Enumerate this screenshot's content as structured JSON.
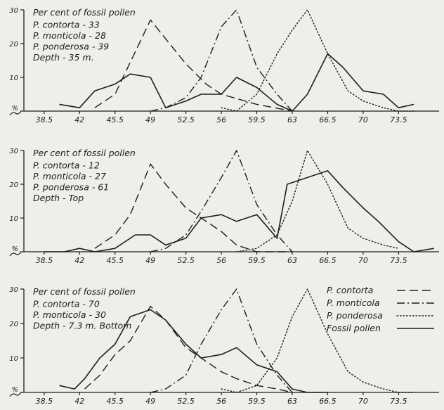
{
  "chart_data": [
    {
      "type": "line",
      "title": "",
      "xlabel": "",
      "ylabel": "",
      "x_tick_labels": [
        "38.5",
        "42",
        "45.5",
        "49",
        "52.5",
        "56",
        "59.5",
        "63",
        "66.5",
        "70",
        "73.5"
      ],
      "y_tick_labels": [
        "%",
        "10",
        "20",
        "30"
      ],
      "xlim": [
        36.5,
        77.5
      ],
      "ylim": [
        0,
        30
      ],
      "grid": false,
      "info_lines": [
        "Per cent of fossil pollen",
        "P. contorta - 33",
        "P. monticola - 28",
        "P. ponderosa - 39",
        "Depth - 35 m."
      ],
      "series": [
        {
          "name": "P. contorta",
          "style": "dashed",
          "x": [
            43.5,
            45.5,
            49,
            52.5,
            54.5,
            56,
            59.5,
            63
          ],
          "y": [
            1,
            5,
            27,
            14,
            8,
            5,
            2,
            0
          ]
        },
        {
          "name": "P. monticola",
          "style": "dashdot",
          "x": [
            49,
            50.5,
            52.5,
            54,
            56,
            57.5,
            59.5,
            61.5,
            63
          ],
          "y": [
            0,
            1,
            4,
            10,
            25,
            30,
            13,
            5,
            0
          ]
        },
        {
          "name": "P. ponderosa",
          "style": "dotted",
          "x": [
            56,
            57.5,
            59.5,
            61.5,
            63,
            64.5,
            66.5,
            68.5,
            70,
            72,
            73.5,
            75
          ],
          "y": [
            1,
            0,
            5,
            17,
            24,
            30,
            17,
            6,
            3,
            1,
            0,
            0
          ]
        },
        {
          "name": "Fossil pollen",
          "style": "solid",
          "x": [
            40,
            42,
            43.5,
            45.5,
            47,
            49,
            50.5,
            52.5,
            54,
            56,
            57.5,
            59.5,
            61.5,
            63,
            64.5,
            66.5,
            68,
            70,
            72,
            73.5,
            75
          ],
          "y": [
            2,
            1,
            6,
            8,
            11,
            10,
            1,
            3,
            5,
            5,
            10,
            7,
            2,
            0,
            5,
            17,
            13,
            6,
            5,
            1,
            2
          ]
        }
      ]
    },
    {
      "type": "line",
      "title": "",
      "xlabel": "",
      "ylabel": "",
      "x_tick_labels": [
        "38.5",
        "42",
        "45.5",
        "49",
        "52.5",
        "56",
        "59.5",
        "63",
        "66.5",
        "70",
        "73.5"
      ],
      "y_tick_labels": [
        "%",
        "10",
        "20",
        "30"
      ],
      "xlim": [
        36.5,
        77.5
      ],
      "ylim": [
        0,
        30
      ],
      "grid": false,
      "info_lines": [
        "Per cent of fossil pollen",
        "P. contorta - 12",
        "P. monticola - 27",
        "P. ponderosa - 61",
        "Depth - Top"
      ],
      "series": [
        {
          "name": "P. contorta",
          "style": "dashed",
          "x": [
            43.5,
            45.5,
            47,
            49,
            50.5,
            52.5,
            54,
            56,
            57.5,
            59.5,
            61.5,
            63
          ],
          "y": [
            1,
            5,
            11,
            26,
            20,
            13,
            10,
            6,
            2,
            0,
            0,
            0
          ]
        },
        {
          "name": "P. monticola",
          "style": "dashdot",
          "x": [
            49,
            50.5,
            52.5,
            54,
            56,
            57.5,
            59.5,
            61.5,
            63
          ],
          "y": [
            0,
            1,
            5,
            12,
            22,
            30,
            14,
            5,
            0
          ]
        },
        {
          "name": "P. ponderosa",
          "style": "dotted",
          "x": [
            57.5,
            59.5,
            61.5,
            63,
            64.5,
            66.5,
            68.5,
            70,
            72,
            73.5
          ],
          "y": [
            0,
            1,
            5,
            15,
            30,
            20,
            7,
            4,
            2,
            1
          ]
        },
        {
          "name": "Fossil pollen",
          "style": "solid",
          "x": [
            38.5,
            40.5,
            42,
            43.5,
            45.5,
            47.5,
            49,
            50.5,
            52.5,
            54,
            56,
            57.5,
            59.5,
            61.5,
            62.5,
            64.5,
            66.5,
            68,
            70,
            71.5,
            73.5,
            75,
            77
          ],
          "y": [
            0,
            0,
            1,
            0,
            1,
            5,
            5,
            2,
            4,
            10,
            11,
            9,
            11,
            4,
            20,
            22,
            24,
            19,
            13,
            9,
            3,
            0,
            1
          ]
        }
      ]
    },
    {
      "type": "line",
      "title": "",
      "xlabel": "",
      "ylabel": "",
      "x_tick_labels": [
        "38.5",
        "42",
        "45.5",
        "49",
        "52.5",
        "56",
        "59.5",
        "63",
        "66.5",
        "70",
        "73.5"
      ],
      "y_tick_labels": [
        "%",
        "10",
        "20",
        "30"
      ],
      "xlim": [
        36.5,
        77.5
      ],
      "ylim": [
        0,
        30
      ],
      "grid": false,
      "info_lines": [
        "Per cent of fossil pollen",
        "P. contorta - 70",
        "P. monticola - 30",
        "Depth - 7.3 m. Bottom"
      ],
      "legend_position": "top-right",
      "legend": [
        "P. contorta",
        "P. monticola",
        "P. ponderosa",
        "Fossil pollen"
      ],
      "series": [
        {
          "name": "P. contorta",
          "style": "dashed",
          "x": [
            42.5,
            44,
            45.5,
            47,
            49,
            50.5,
            52.5,
            54,
            56,
            57.5,
            59.5,
            61.5,
            63
          ],
          "y": [
            1,
            5,
            11,
            15,
            25,
            21,
            13,
            10,
            6,
            4,
            2,
            1,
            0
          ]
        },
        {
          "name": "P. monticola",
          "style": "dashdot",
          "x": [
            49,
            50.5,
            52.5,
            54,
            56,
            57.5,
            59.5,
            61.5,
            63
          ],
          "y": [
            0,
            1,
            5,
            14,
            24,
            30,
            14,
            5,
            0
          ]
        },
        {
          "name": "P. ponderosa",
          "style": "dotted",
          "x": [
            56,
            57.5,
            59.5,
            61.5,
            63,
            64.5,
            66.5,
            68.5,
            70,
            72,
            73.5,
            75
          ],
          "y": [
            1,
            0,
            2,
            10,
            22,
            30,
            17,
            6,
            3,
            1,
            0,
            0
          ]
        },
        {
          "name": "Fossil pollen",
          "style": "solid",
          "x": [
            40,
            41.5,
            42.5,
            44,
            45.5,
            47,
            49,
            50.5,
            52.5,
            54,
            56,
            57.5,
            59.5,
            61.5,
            63,
            64.5,
            66.5
          ],
          "y": [
            2,
            1,
            4,
            10,
            14,
            22,
            24,
            21,
            14,
            10,
            11,
            13,
            8,
            6,
            1,
            0,
            0
          ]
        }
      ]
    }
  ]
}
